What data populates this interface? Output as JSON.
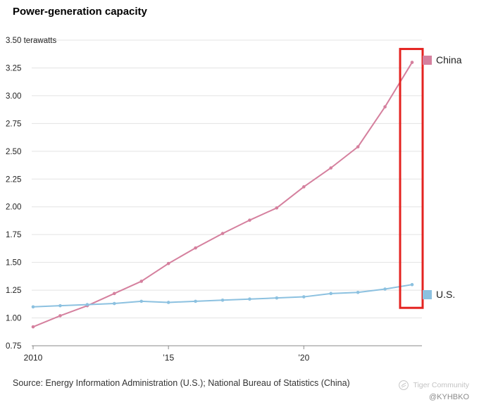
{
  "title": "Power-generation capacity",
  "source": "Source: Energy Information Administration (U.S.); National Bureau of Statistics (China)",
  "watermark": {
    "brand": "Tiger Community",
    "handle": "@KYHBKO"
  },
  "colors": {
    "grid": "#e3e3e3",
    "axis": "#8a8a8a",
    "text": "#222222",
    "highlight": "#e42320"
  },
  "chart_data": {
    "type": "line",
    "title": "Power-generation capacity",
    "unit": "terawatts",
    "x": [
      2010,
      2011,
      2012,
      2013,
      2014,
      2015,
      2016,
      2017,
      2018,
      2019,
      2020,
      2021,
      2022,
      2023,
      2024
    ],
    "series": [
      {
        "name": "China",
        "color": "#d5809e",
        "values": [
          0.92,
          1.02,
          1.11,
          1.22,
          1.33,
          1.49,
          1.63,
          1.76,
          1.88,
          1.99,
          2.18,
          2.35,
          2.54,
          2.9,
          3.3
        ]
      },
      {
        "name": "U.S.",
        "color": "#8cc1e0",
        "values": [
          1.1,
          1.11,
          1.12,
          1.13,
          1.15,
          1.14,
          1.15,
          1.16,
          1.17,
          1.18,
          1.19,
          1.22,
          1.23,
          1.26,
          1.3
        ]
      }
    ],
    "ylim": [
      0.75,
      3.5
    ],
    "ytick_step": 0.25,
    "xticks": [
      {
        "value": 2010,
        "label": "2010"
      },
      {
        "value": 2015,
        "label": "’15"
      },
      {
        "value": 2020,
        "label": "’20"
      }
    ],
    "grid": "horizontal",
    "legend_position": "right",
    "highlight": {
      "year": 2024
    }
  }
}
